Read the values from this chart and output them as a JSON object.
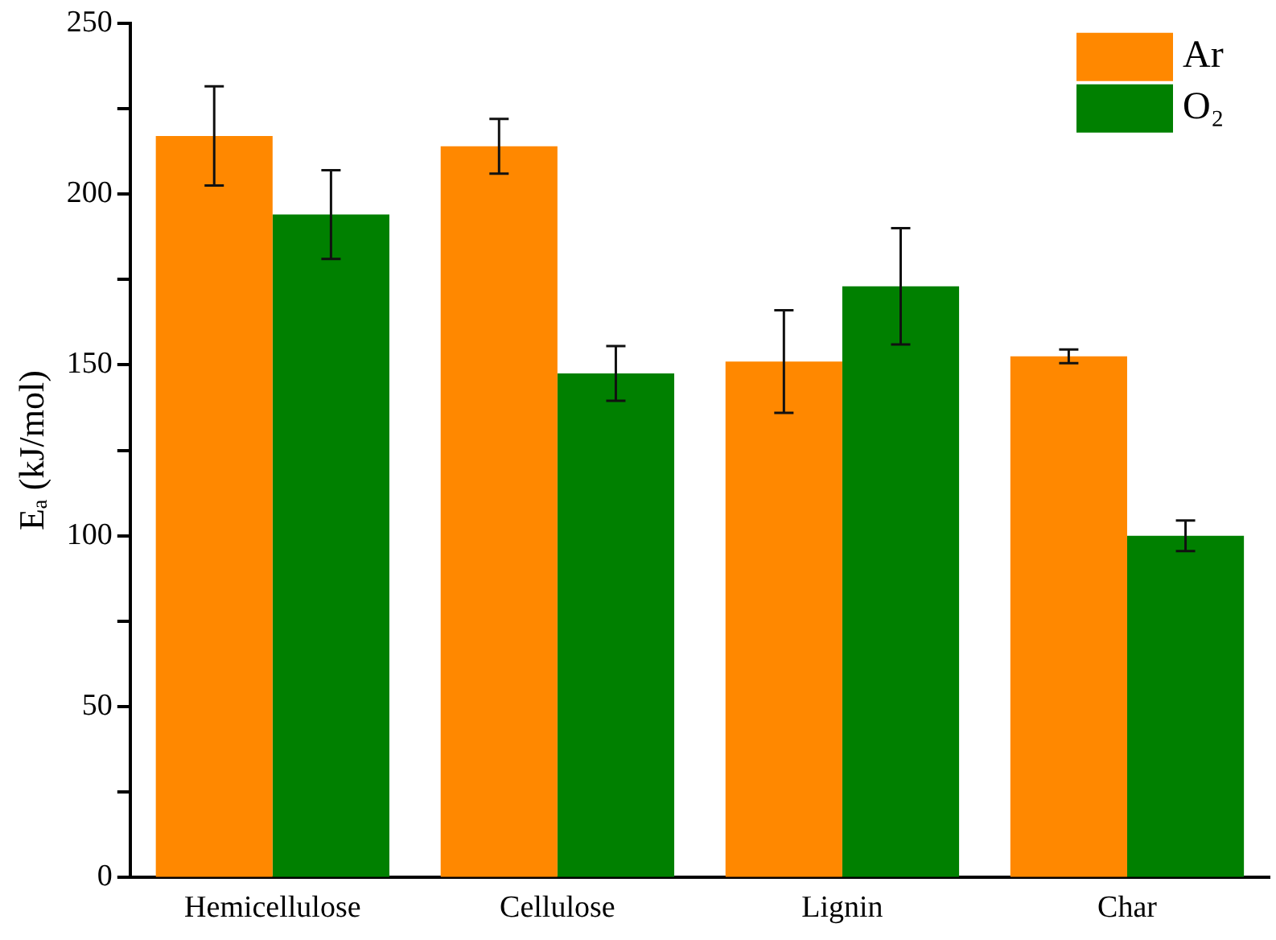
{
  "chart_data": {
    "type": "bar",
    "ylabel": "Eₐ (kJ/mol)",
    "categories": [
      "Hemicellulose",
      "Cellulose",
      "Lignin",
      "Char"
    ],
    "series": [
      {
        "name": "Ar",
        "color": "#ff8800",
        "values": [
          217,
          214,
          151,
          152.5
        ],
        "errors": [
          14.5,
          8,
          15,
          2
        ]
      },
      {
        "name": "O₂",
        "color": "#008000",
        "values": [
          194,
          147.5,
          173,
          100
        ],
        "errors": [
          13,
          8,
          17,
          4.5
        ]
      }
    ],
    "ylim": [
      0,
      250
    ],
    "yticks": [
      0,
      {
        "value": 25,
        "label": null
      },
      50,
      {
        "value": 75,
        "label": null
      },
      100,
      {
        "value": 125,
        "label": null
      },
      150,
      {
        "value": 175,
        "label": null
      },
      200,
      {
        "value": 225,
        "label": null
      },
      250
    ],
    "grid": false,
    "legend": "top right"
  }
}
